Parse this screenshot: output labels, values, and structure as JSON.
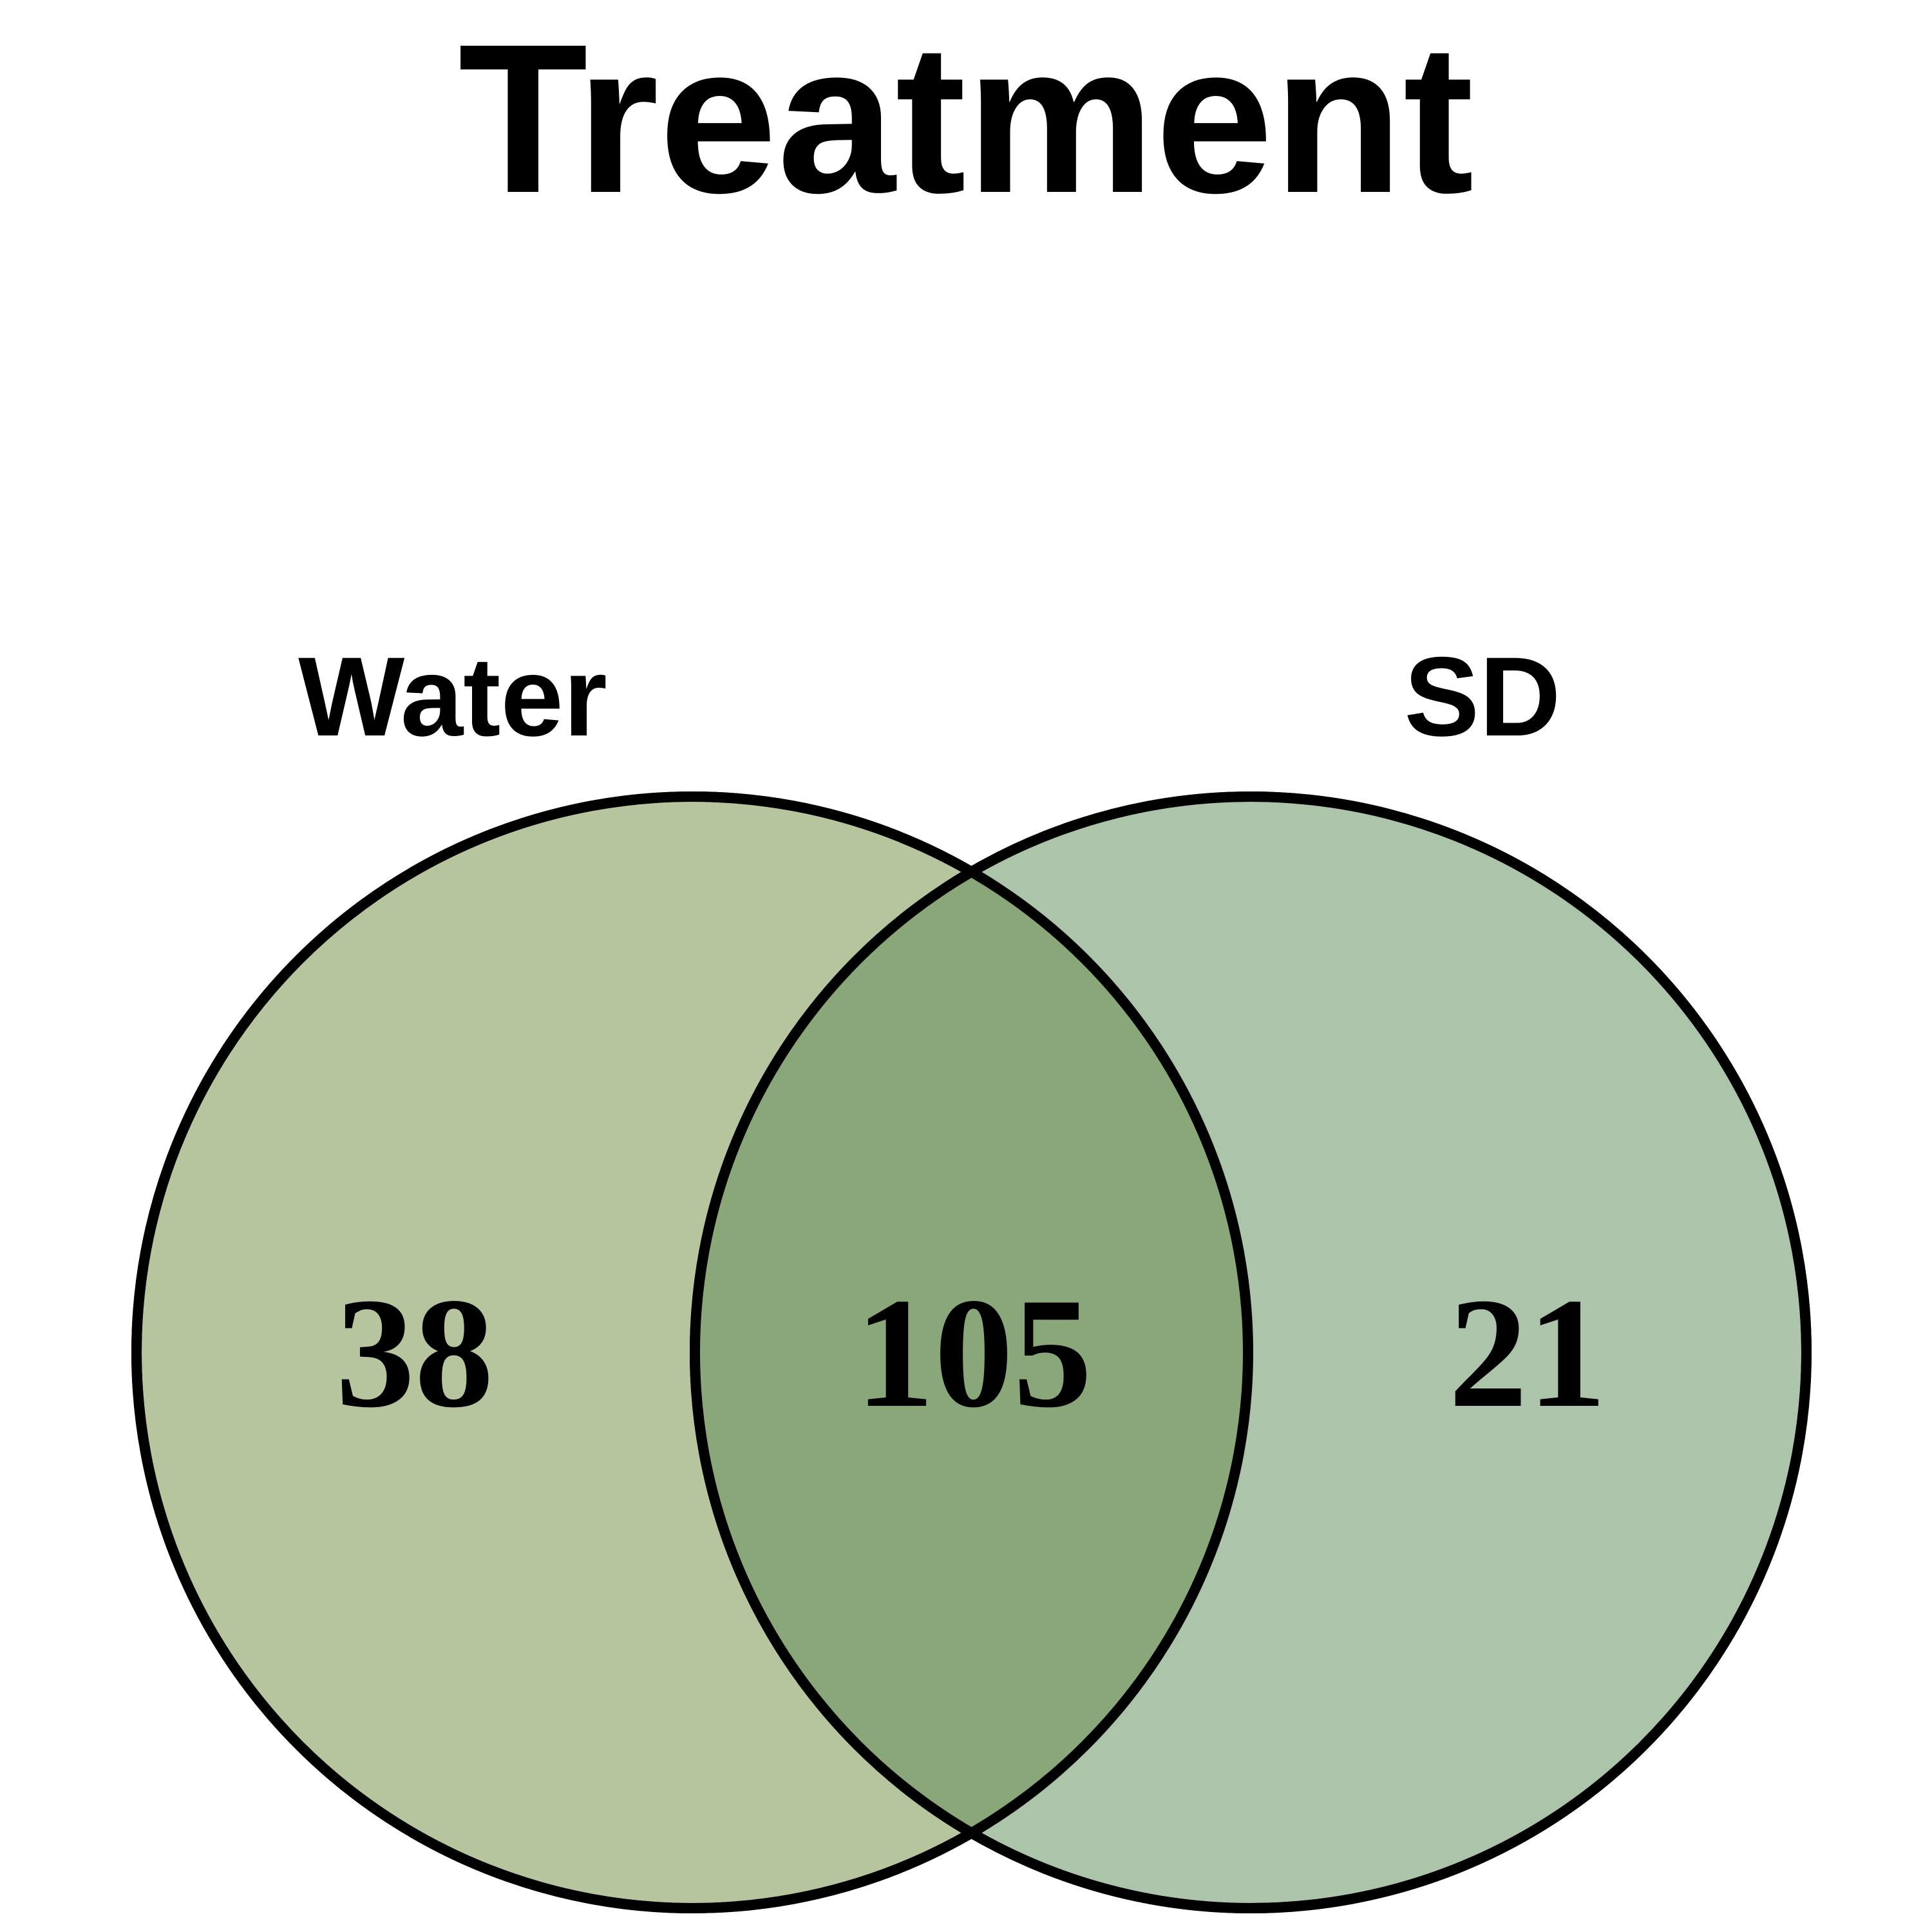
{
  "title": "Treatment",
  "sets": [
    {
      "name": "Water",
      "only_count": "38",
      "color": "#b6c59d"
    },
    {
      "name": "SD",
      "only_count": "21",
      "color": "#abc4aa"
    }
  ],
  "intersection": {
    "count": "105",
    "color": "#89a779"
  },
  "outline_color": "#000000"
}
